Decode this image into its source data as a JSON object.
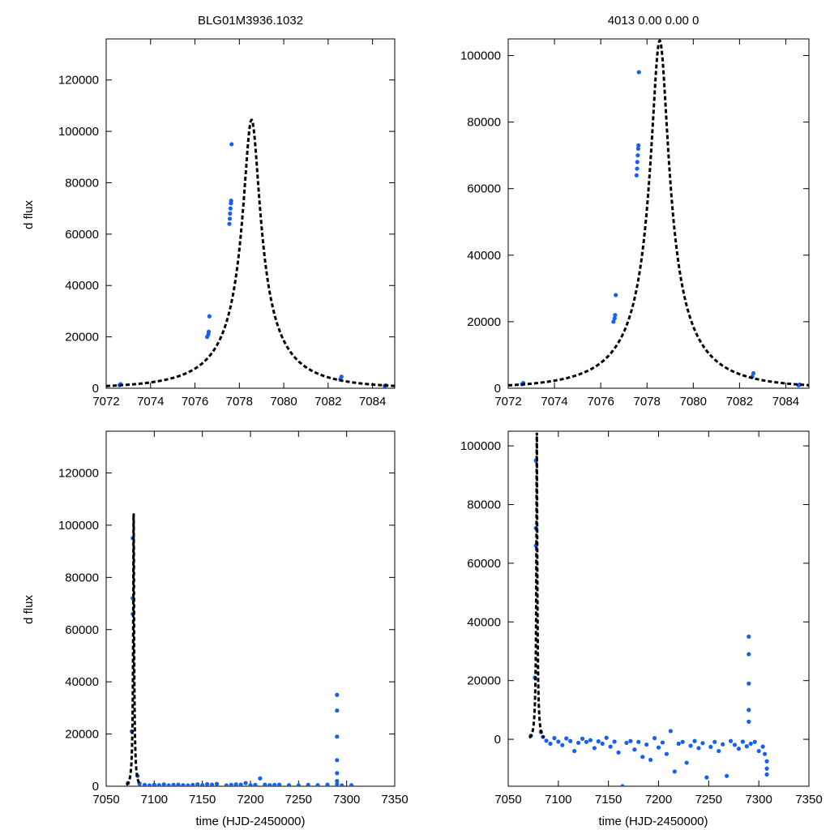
{
  "figure": {
    "left_title": "BLG01M3936.1032",
    "right_title": "4013   0.00   0.00   0",
    "ylabel": "d flux",
    "xlabel": "time (HJD-2450000)"
  },
  "colors": {
    "points": "#1560f0",
    "model": "#000000",
    "axes": "#000000"
  },
  "chart_data": [
    {
      "id": "top-left",
      "type": "scatter",
      "xlim": [
        7072,
        7085
      ],
      "ylim": [
        0,
        136000
      ],
      "xticks": [
        7072,
        7074,
        7076,
        7078,
        7080,
        7082,
        7084
      ],
      "yticks": [
        0,
        20000,
        40000,
        60000,
        80000,
        100000,
        120000
      ],
      "ylabel": "d flux",
      "xlabel": "",
      "model": {
        "t0": 7078.55,
        "peak": 104500,
        "u0": 0.111,
        "tE": 3.4
      },
      "series": [
        {
          "name": "data",
          "x": [
            7072.6,
            7072.65,
            7076.55,
            7076.6,
            7076.62,
            7076.65,
            7077.55,
            7077.57,
            7077.58,
            7077.6,
            7077.62,
            7077.63,
            7077.65,
            7082.55,
            7082.6,
            7084.55,
            7084.6
          ],
          "y": [
            1200,
            1600,
            20000,
            21000,
            22000,
            28000,
            64000,
            66000,
            68000,
            70000,
            72000,
            73000,
            95000,
            3500,
            4500,
            900,
            1100
          ]
        }
      ]
    },
    {
      "id": "top-right",
      "type": "scatter",
      "xlim": [
        7072,
        7085
      ],
      "ylim": [
        0,
        105000
      ],
      "xticks": [
        7072,
        7074,
        7076,
        7078,
        7080,
        7082,
        7084
      ],
      "yticks": [
        0,
        20000,
        40000,
        60000,
        80000,
        100000
      ],
      "ylabel": "",
      "xlabel": "",
      "model": {
        "t0": 7078.55,
        "peak": 104500,
        "u0": 0.111,
        "tE": 3.4
      },
      "series": [
        {
          "name": "data",
          "x": [
            7072.6,
            7072.65,
            7076.55,
            7076.6,
            7076.62,
            7076.65,
            7077.55,
            7077.57,
            7077.58,
            7077.6,
            7077.62,
            7077.63,
            7077.65,
            7082.55,
            7082.6,
            7084.55,
            7084.6
          ],
          "y": [
            1200,
            1600,
            20000,
            21000,
            22000,
            28000,
            64000,
            66000,
            68000,
            70000,
            72000,
            73000,
            95000,
            3500,
            4500,
            900,
            1100
          ]
        }
      ]
    },
    {
      "id": "bottom-left",
      "type": "scatter",
      "xlim": [
        7050,
        7350
      ],
      "ylim": [
        0,
        136000
      ],
      "xticks": [
        7050,
        7100,
        7150,
        7200,
        7250,
        7300,
        7350
      ],
      "yticks": [
        0,
        20000,
        40000,
        60000,
        80000,
        100000,
        120000
      ],
      "ylabel": "d flux",
      "xlabel": "time (HJD-2450000)",
      "model": {
        "t0": 7078.55,
        "peak": 104500,
        "u0": 0.111,
        "tE": 3.4
      },
      "series": [
        {
          "name": "data",
          "x": [
            7072.6,
            7076.6,
            7077.6,
            7077.6,
            7077.6,
            7082.6,
            7084.6,
            7090,
            7095,
            7100,
            7105,
            7110,
            7115,
            7120,
            7125,
            7130,
            7135,
            7140,
            7145,
            7150,
            7155,
            7160,
            7165,
            7175,
            7180,
            7185,
            7190,
            7195,
            7200,
            7205,
            7210,
            7215,
            7220,
            7225,
            7230,
            7240,
            7250,
            7260,
            7270,
            7280,
            7290,
            7290,
            7290,
            7290,
            7290,
            7290,
            7290,
            7295,
            7305
          ],
          "y": [
            1200,
            21000,
            66000,
            72000,
            95000,
            4000,
            1000,
            500,
            300,
            600,
            400,
            700,
            300,
            500,
            600,
            400,
            300,
            500,
            700,
            400,
            800,
            600,
            900,
            300,
            500,
            700,
            600,
            1200,
            400,
            500,
            3000,
            600,
            400,
            500,
            600,
            400,
            300,
            500,
            400,
            600,
            35000,
            29000,
            19000,
            10000,
            5000,
            2000,
            800,
            300,
            400
          ]
        }
      ]
    },
    {
      "id": "bottom-right",
      "type": "scatter",
      "xlim": [
        7050,
        7350
      ],
      "ylim": [
        -16000,
        105000
      ],
      "xticks": [
        7050,
        7100,
        7150,
        7200,
        7250,
        7300,
        7350
      ],
      "yticks": [
        0,
        20000,
        40000,
        60000,
        80000,
        100000
      ],
      "ylabel": "",
      "xlabel": "time (HJD-2450000)",
      "model": {
        "t0": 7078.55,
        "peak": 104500,
        "u0": 0.111,
        "tE": 3.4
      },
      "series": [
        {
          "name": "data",
          "x": [
            7072.6,
            7076.6,
            7077.6,
            7077.6,
            7077.6,
            7082.6,
            7084.6,
            7088,
            7092,
            7096,
            7100,
            7104,
            7108,
            7112,
            7116,
            7120,
            7124,
            7128,
            7132,
            7136,
            7140,
            7144,
            7148,
            7152,
            7156,
            7160,
            7164,
            7168,
            7172,
            7176,
            7180,
            7184,
            7188,
            7192,
            7196,
            7200,
            7204,
            7208,
            7212,
            7216,
            7220,
            7224,
            7228,
            7232,
            7236,
            7240,
            7244,
            7248,
            7252,
            7256,
            7260,
            7264,
            7268,
            7272,
            7276,
            7280,
            7284,
            7288,
            7290,
            7290,
            7290,
            7290,
            7290,
            7292,
            7296,
            7300,
            7304,
            7306,
            7308,
            7308,
            7308
          ],
          "y": [
            1200,
            21000,
            66000,
            72000,
            95000,
            2500,
            800,
            -500,
            -1500,
            400,
            -800,
            -2000,
            300,
            -600,
            -4000,
            -1200,
            200,
            -900,
            -300,
            -3000,
            -700,
            -1500,
            500,
            -2500,
            -800,
            -4500,
            -16000,
            -1200,
            -600,
            -3500,
            -900,
            -6000,
            -1800,
            -7000,
            400,
            -2800,
            -1100,
            -5000,
            2800,
            -11000,
            -1500,
            -900,
            -8000,
            -2200,
            -600,
            -3000,
            -1300,
            -13000,
            -2600,
            -900,
            -4000,
            -1700,
            -12500,
            -600,
            -1900,
            -3200,
            -800,
            -2400,
            35000,
            29000,
            19000,
            10000,
            6000,
            -1500,
            -900,
            -4000,
            -2500,
            -5000,
            -7500,
            -10000,
            -12000
          ]
        }
      ]
    }
  ]
}
